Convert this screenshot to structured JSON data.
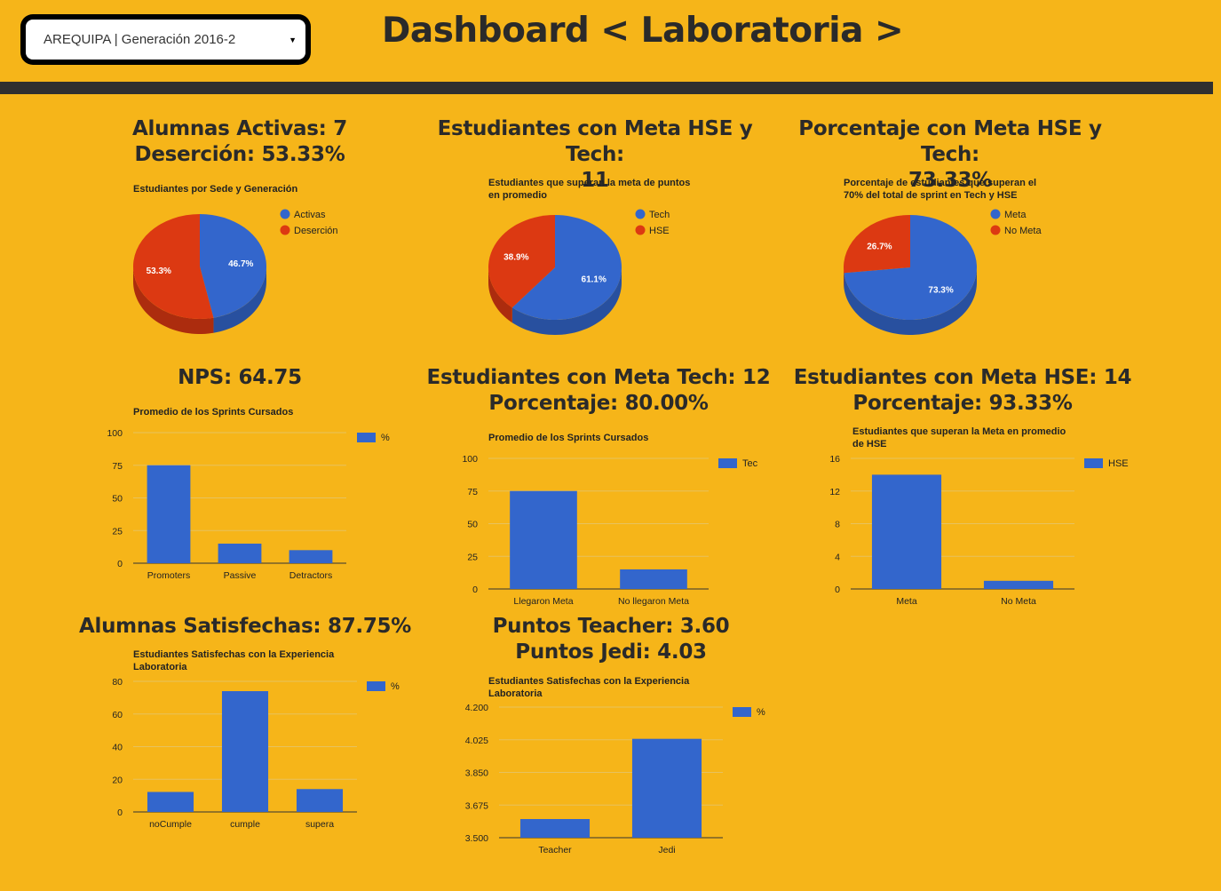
{
  "header": {
    "select_value": "AREQUIPA | Generación 2016-2",
    "title": "Dashboard < Laboratoria >"
  },
  "colors": {
    "background": "#f6b519",
    "blue": "#3366cc",
    "red": "#dc3912",
    "dark": "#2f2f2f"
  },
  "icons": {
    "select_caret": "chevron-down-icon"
  },
  "headings": {
    "activas": {
      "line1": "Alumnas Activas: 7",
      "line2": "Deserción: 53.33%"
    },
    "meta_hse_tech": {
      "line1": "Estudiantes con Meta HSE y Tech:",
      "line2": "11"
    },
    "pct_hse_tech": {
      "line1": "Porcentaje con Meta HSE y Tech:",
      "line2": "73.33%"
    },
    "nps": {
      "line1": "NPS: 64.75"
    },
    "meta_tech": {
      "line1": "Estudiantes con Meta Tech: 12",
      "line2": "Porcentaje: 80.00%"
    },
    "meta_hse": {
      "line1": "Estudiantes con Meta HSE: 14",
      "line2": "Porcentaje: 93.33%"
    },
    "satisfechas": {
      "line1": "Alumnas Satisfechas: 87.75%"
    },
    "puntos": {
      "line1": "Puntos Teacher: 3.60",
      "line2": "Puntos Jedi: 4.03"
    }
  },
  "chart_data": [
    {
      "id": "c1",
      "type": "pie",
      "title": "Estudiantes por Sede y Generación",
      "labels": [
        "Activas",
        "Deserción"
      ],
      "values": [
        46.7,
        53.3
      ],
      "slice_labels": [
        "46.7%",
        "53.3%"
      ],
      "colors": [
        "#3366cc",
        "#dc3912"
      ],
      "legend": "right",
      "style": "3d"
    },
    {
      "id": "c2",
      "type": "pie",
      "title": "Estudiantes que superan la meta de puntos en promedio",
      "labels": [
        "Tech",
        "HSE"
      ],
      "values": [
        61.1,
        38.9
      ],
      "slice_labels": [
        "61.1%",
        "38.9%"
      ],
      "colors": [
        "#3366cc",
        "#dc3912"
      ],
      "legend": "right",
      "style": "3d"
    },
    {
      "id": "c3",
      "type": "pie",
      "title": "Porcentaje de estudiantes que superan el 70% del total de sprint en Tech y HSE",
      "labels": [
        "Meta",
        "No Meta"
      ],
      "values": [
        73.3,
        26.7
      ],
      "slice_labels": [
        "73.3%",
        "26.7%"
      ],
      "colors": [
        "#3366cc",
        "#dc3912"
      ],
      "legend": "right",
      "style": "3d"
    },
    {
      "id": "c4",
      "type": "bar",
      "title": "Promedio de los Sprints Cursados",
      "categories": [
        "Promoters",
        "Passive",
        "Detractors"
      ],
      "series": [
        {
          "name": "%",
          "values": [
            75,
            15,
            10
          ]
        }
      ],
      "ylim": [
        0,
        100
      ],
      "yticks": [
        "0",
        "25",
        "50",
        "75",
        "100"
      ],
      "grid": true,
      "legend": "right"
    },
    {
      "id": "c5",
      "type": "bar",
      "title": "Promedio de los Sprints Cursados",
      "categories": [
        "Llegaron Meta",
        "No llegaron Meta"
      ],
      "series": [
        {
          "name": "Tec",
          "values": [
            75,
            15
          ]
        }
      ],
      "ylim": [
        0,
        100
      ],
      "yticks": [
        "0",
        "25",
        "50",
        "75",
        "100"
      ],
      "grid": true,
      "legend": "right"
    },
    {
      "id": "c6",
      "type": "bar",
      "title": "Estudiantes que superan la Meta en promedio de HSE",
      "categories": [
        "Meta",
        "No Meta"
      ],
      "series": [
        {
          "name": "HSE",
          "values": [
            14,
            1
          ]
        }
      ],
      "ylim": [
        0,
        16
      ],
      "yticks": [
        "0",
        "4",
        "8",
        "12",
        "16"
      ],
      "grid": true,
      "legend": "right"
    },
    {
      "id": "c7",
      "type": "bar",
      "title": "Estudiantes Satisfechas con la Experiencia Laboratoria",
      "categories": [
        "noCumple",
        "cumple",
        "supera"
      ],
      "series": [
        {
          "name": "%",
          "values": [
            12.25,
            74,
            14
          ]
        }
      ],
      "ylim": [
        0,
        80
      ],
      "yticks": [
        "0",
        "20",
        "40",
        "60",
        "80"
      ],
      "grid": true,
      "legend": "right"
    },
    {
      "id": "c8",
      "type": "bar",
      "title": "Estudiantes Satisfechas con la Experiencia Laboratoria",
      "categories": [
        "Teacher",
        "Jedi"
      ],
      "series": [
        {
          "name": "%",
          "values": [
            3.6,
            4.03
          ]
        }
      ],
      "ylim": [
        3.5,
        4.2
      ],
      "yticks": [
        "3.500",
        "3.675",
        "3.850",
        "4.025",
        "4.200"
      ],
      "grid": true,
      "legend": "right"
    }
  ]
}
